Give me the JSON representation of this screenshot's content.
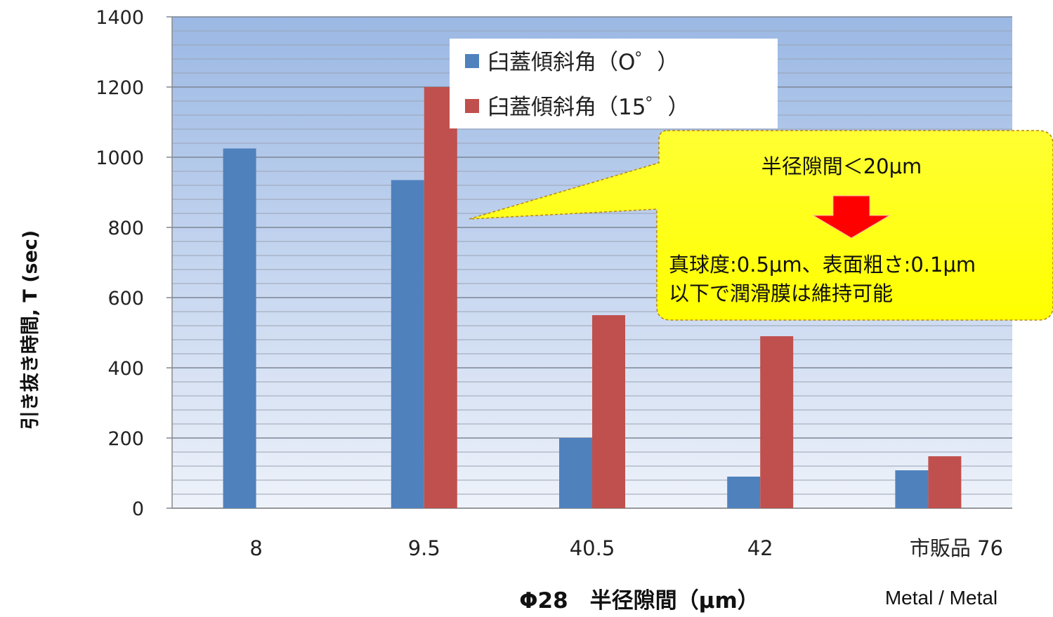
{
  "chart_data": {
    "type": "bar",
    "title": "",
    "categories": [
      "8",
      "9.5",
      "40.5",
      "42",
      "市販品 76"
    ],
    "series": [
      {
        "name": "臼蓋傾斜角（O゜）",
        "color": "#4f81bd",
        "values": [
          1025,
          935,
          200,
          90,
          108
        ]
      },
      {
        "name": "臼蓋傾斜角（15゜）",
        "color": "#c0504d",
        "values": [
          null,
          1200,
          550,
          490,
          148
        ]
      }
    ],
    "ylim": [
      0,
      1400
    ],
    "yticks": [
      0,
      200,
      400,
      600,
      800,
      1000,
      1200,
      1400
    ],
    "ylabel": "引き抜き時間, T (sec)",
    "xlabel": "Φ28　半径隙間（μm）",
    "x_sublabel": "Metal / Metal",
    "grid": true,
    "legend_position": "top-center",
    "annotation": {
      "line1": "半径隙間＜20μm",
      "line2": "真球度:0.5μm、表面粗さ:0.1μm",
      "line3": "以下で潤滑膜は維持可能",
      "fill": "#ffff00",
      "arrow_color": "#ff0000"
    }
  }
}
